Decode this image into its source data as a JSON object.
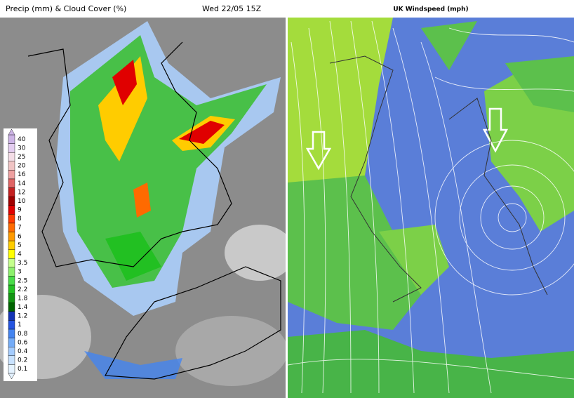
{
  "left_panel": {
    "title": "Precip (mm) & Cloud Cover (%)",
    "timestamp": "Wed 22/05 15Z",
    "legend": {
      "labels": [
        "40",
        "30",
        "25",
        "20",
        "16",
        "14",
        "12",
        "10",
        "9",
        "8",
        "7",
        "6",
        "5",
        "4",
        "3.5",
        "3",
        "2.5",
        "2.2",
        "1.8",
        "1.4",
        "1.2",
        "1",
        "0.8",
        "0.6",
        "0.4",
        "0.2",
        "0.1"
      ],
      "colors": [
        "#cdb4e6",
        "#e4cdf0",
        "#f4dde6",
        "#f0c4c4",
        "#eea0a0",
        "#e06464",
        "#c42020",
        "#a00000",
        "#e00000",
        "#ff3a00",
        "#ff6a00",
        "#ff9a00",
        "#ffcc00",
        "#ffff00",
        "#c4ff8c",
        "#8cf06c",
        "#48dc48",
        "#22c022",
        "#129412",
        "#006400",
        "#1434b4",
        "#2454e0",
        "#4484f0",
        "#74acf8",
        "#a4ccff",
        "#c8e2ff",
        "#e4f2ff"
      ]
    }
  },
  "right_panel": {
    "title": "UK Windspeed (mph)"
  }
}
